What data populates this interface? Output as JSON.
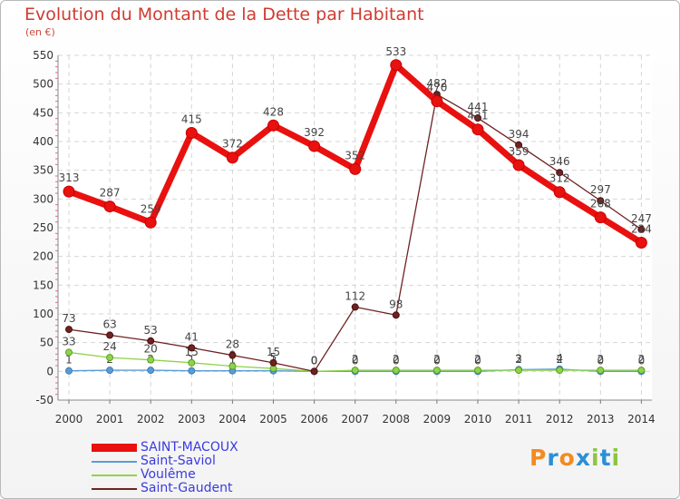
{
  "chart_data": {
    "type": "line",
    "title": "Evolution du Montant de la Dette par Habitant",
    "subtitle": "(en €)",
    "xlabel": "",
    "ylabel": "",
    "x": [
      2000,
      2001,
      2002,
      2003,
      2004,
      2005,
      2006,
      2007,
      2008,
      2009,
      2010,
      2011,
      2012,
      2013,
      2014
    ],
    "ylim": [
      -50,
      550
    ],
    "yticks": [
      -50,
      0,
      50,
      100,
      150,
      200,
      250,
      300,
      350,
      400,
      450,
      500,
      550
    ],
    "grid": true,
    "legend_position": "bottom-left",
    "series": [
      {
        "name": "SAINT-MACOUX",
        "color": "#e8110f",
        "values": [
          313,
          287,
          259,
          415,
          372,
          428,
          392,
          352,
          533,
          470,
          421,
          359,
          312,
          268,
          224
        ]
      },
      {
        "name": "Saint-Saviol",
        "color": "#5b9bd5",
        "values": [
          1,
          2,
          2,
          1,
          1,
          1,
          0,
          0,
          0,
          0,
          0,
          3,
          4,
          0,
          0
        ]
      },
      {
        "name": "Voulême",
        "color": "#8fd34a",
        "values": [
          33,
          24,
          20,
          15,
          9,
          5,
          0,
          2,
          2,
          2,
          2,
          2,
          2,
          2,
          2
        ]
      },
      {
        "name": "Saint-Gaudent",
        "color": "#6e2222",
        "values": [
          73,
          63,
          53,
          41,
          28,
          15,
          0,
          112,
          98,
          482,
          441,
          394,
          346,
          297,
          247
        ]
      }
    ]
  },
  "brand": {
    "text": "Proxiti",
    "letters": [
      {
        "char": "P",
        "color": "#f58a1f"
      },
      {
        "char": "r",
        "color": "#2b8fd6"
      },
      {
        "char": "o",
        "color": "#f58a1f"
      },
      {
        "char": "x",
        "color": "#2b8fd6"
      },
      {
        "char": "i",
        "color": "#8cc63f"
      },
      {
        "char": "t",
        "color": "#2b8fd6"
      },
      {
        "char": "i",
        "color": "#8cc63f"
      }
    ]
  }
}
